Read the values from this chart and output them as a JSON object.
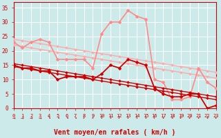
{
  "background_color": "#cceaea",
  "grid_color": "#ffffff",
  "xlabel": "Vent moyen/en rafales ( km/h )",
  "xlabel_color": "#cc0000",
  "xlabel_fontsize": 7,
  "yticks": [
    0,
    5,
    10,
    15,
    20,
    25,
    30,
    35
  ],
  "xticks": [
    0,
    1,
    2,
    3,
    4,
    5,
    6,
    7,
    8,
    9,
    10,
    11,
    12,
    13,
    14,
    15,
    16,
    17,
    18,
    19,
    20,
    21,
    22,
    23
  ],
  "ylim": [
    0,
    37
  ],
  "xlim": [
    0,
    23
  ],
  "series": [
    {
      "comment": "dark red line 1 - lower straight diagonal",
      "x": [
        0,
        1,
        2,
        3,
        4,
        5,
        6,
        7,
        8,
        9,
        10,
        11,
        12,
        13,
        14,
        15,
        16,
        17,
        18,
        19,
        20,
        21,
        22,
        23
      ],
      "y": [
        14.5,
        14.0,
        13.5,
        13.0,
        12.5,
        12.0,
        11.5,
        11.0,
        10.5,
        10.0,
        9.5,
        9.0,
        8.5,
        8.0,
        7.5,
        7.0,
        6.5,
        6.0,
        5.5,
        5.0,
        4.5,
        4.0,
        3.5,
        3.0
      ],
      "color": "#cc0000",
      "linewidth": 1.0,
      "marker": "D",
      "markersize": 2,
      "zorder": 5
    },
    {
      "comment": "dark red line 2 - upper straight diagonal",
      "x": [
        0,
        1,
        2,
        3,
        4,
        5,
        6,
        7,
        8,
        9,
        10,
        11,
        12,
        13,
        14,
        15,
        16,
        17,
        18,
        19,
        20,
        21,
        22,
        23
      ],
      "y": [
        15.5,
        15.0,
        14.5,
        14.0,
        13.5,
        13.0,
        12.5,
        12.0,
        11.5,
        11.0,
        10.5,
        10.0,
        9.5,
        9.0,
        8.5,
        8.0,
        7.5,
        7.0,
        6.5,
        6.0,
        5.5,
        5.0,
        4.5,
        4.0
      ],
      "color": "#cc0000",
      "linewidth": 1.0,
      "marker": "D",
      "markersize": 2,
      "zorder": 5
    },
    {
      "comment": "dark red jagged line - vent moyen with variation",
      "x": [
        0,
        1,
        2,
        3,
        4,
        5,
        6,
        7,
        8,
        9,
        10,
        11,
        12,
        13,
        14,
        15,
        16,
        17,
        18,
        19,
        20,
        21,
        22,
        23
      ],
      "y": [
        15,
        14,
        14,
        13,
        13,
        10,
        11,
        11,
        11,
        10,
        12,
        15,
        14,
        17,
        16,
        15,
        7,
        5,
        4,
        4,
        5,
        5,
        0,
        1
      ],
      "color": "#cc0000",
      "linewidth": 1.3,
      "marker": "D",
      "markersize": 2.5,
      "zorder": 6
    },
    {
      "comment": "light pink straight diagonal upper",
      "x": [
        0,
        1,
        2,
        3,
        4,
        5,
        6,
        7,
        8,
        9,
        10,
        11,
        12,
        13,
        14,
        15,
        16,
        17,
        18,
        19,
        20,
        21,
        22,
        23
      ],
      "y": [
        24,
        23.5,
        23,
        22.5,
        22,
        21.5,
        21,
        20.5,
        20,
        19.5,
        19,
        18.5,
        18,
        17.5,
        17,
        16.5,
        16,
        15.5,
        15,
        14.5,
        14,
        13.5,
        13,
        12.5
      ],
      "color": "#ffaaaa",
      "linewidth": 1.0,
      "marker": "D",
      "markersize": 2,
      "zorder": 3
    },
    {
      "comment": "light pink straight diagonal lower",
      "x": [
        0,
        1,
        2,
        3,
        4,
        5,
        6,
        7,
        8,
        9,
        10,
        11,
        12,
        13,
        14,
        15,
        16,
        17,
        18,
        19,
        20,
        21,
        22,
        23
      ],
      "y": [
        22,
        21.5,
        21,
        20.5,
        20,
        19.5,
        19,
        18.5,
        18,
        17.5,
        17,
        16.5,
        16,
        15.5,
        15,
        14.5,
        14,
        13.5,
        13,
        12.5,
        12,
        11.5,
        11,
        10.5
      ],
      "color": "#ffaaaa",
      "linewidth": 1.0,
      "marker": "D",
      "markersize": 2,
      "zorder": 3
    },
    {
      "comment": "pink jagged line - rafales with big spike",
      "x": [
        0,
        1,
        2,
        3,
        4,
        5,
        6,
        7,
        8,
        9,
        10,
        11,
        12,
        13,
        14,
        15,
        16,
        17,
        18,
        19,
        20,
        21,
        22,
        23
      ],
      "y": [
        23,
        21,
        23,
        24,
        23,
        17,
        17,
        17,
        17,
        14,
        26,
        30,
        30,
        34,
        32,
        31,
        10,
        9,
        3,
        3,
        4,
        14,
        9,
        7
      ],
      "color": "#ff8888",
      "linewidth": 1.2,
      "marker": "D",
      "markersize": 2.5,
      "zorder": 4
    }
  ],
  "arrow_symbols": [
    "→",
    "→",
    "→",
    "→",
    "↘",
    "↘",
    "↘",
    "↘",
    "↓",
    "↓",
    "↓",
    "↓",
    "↓",
    "↓",
    "↓",
    "↓",
    "↓",
    "↙",
    "↙",
    "↙",
    "↙",
    "↙",
    "↙",
    "↙"
  ],
  "tick_color": "#cc0000",
  "tick_fontsize": 5.5,
  "spine_color": "#cc0000"
}
